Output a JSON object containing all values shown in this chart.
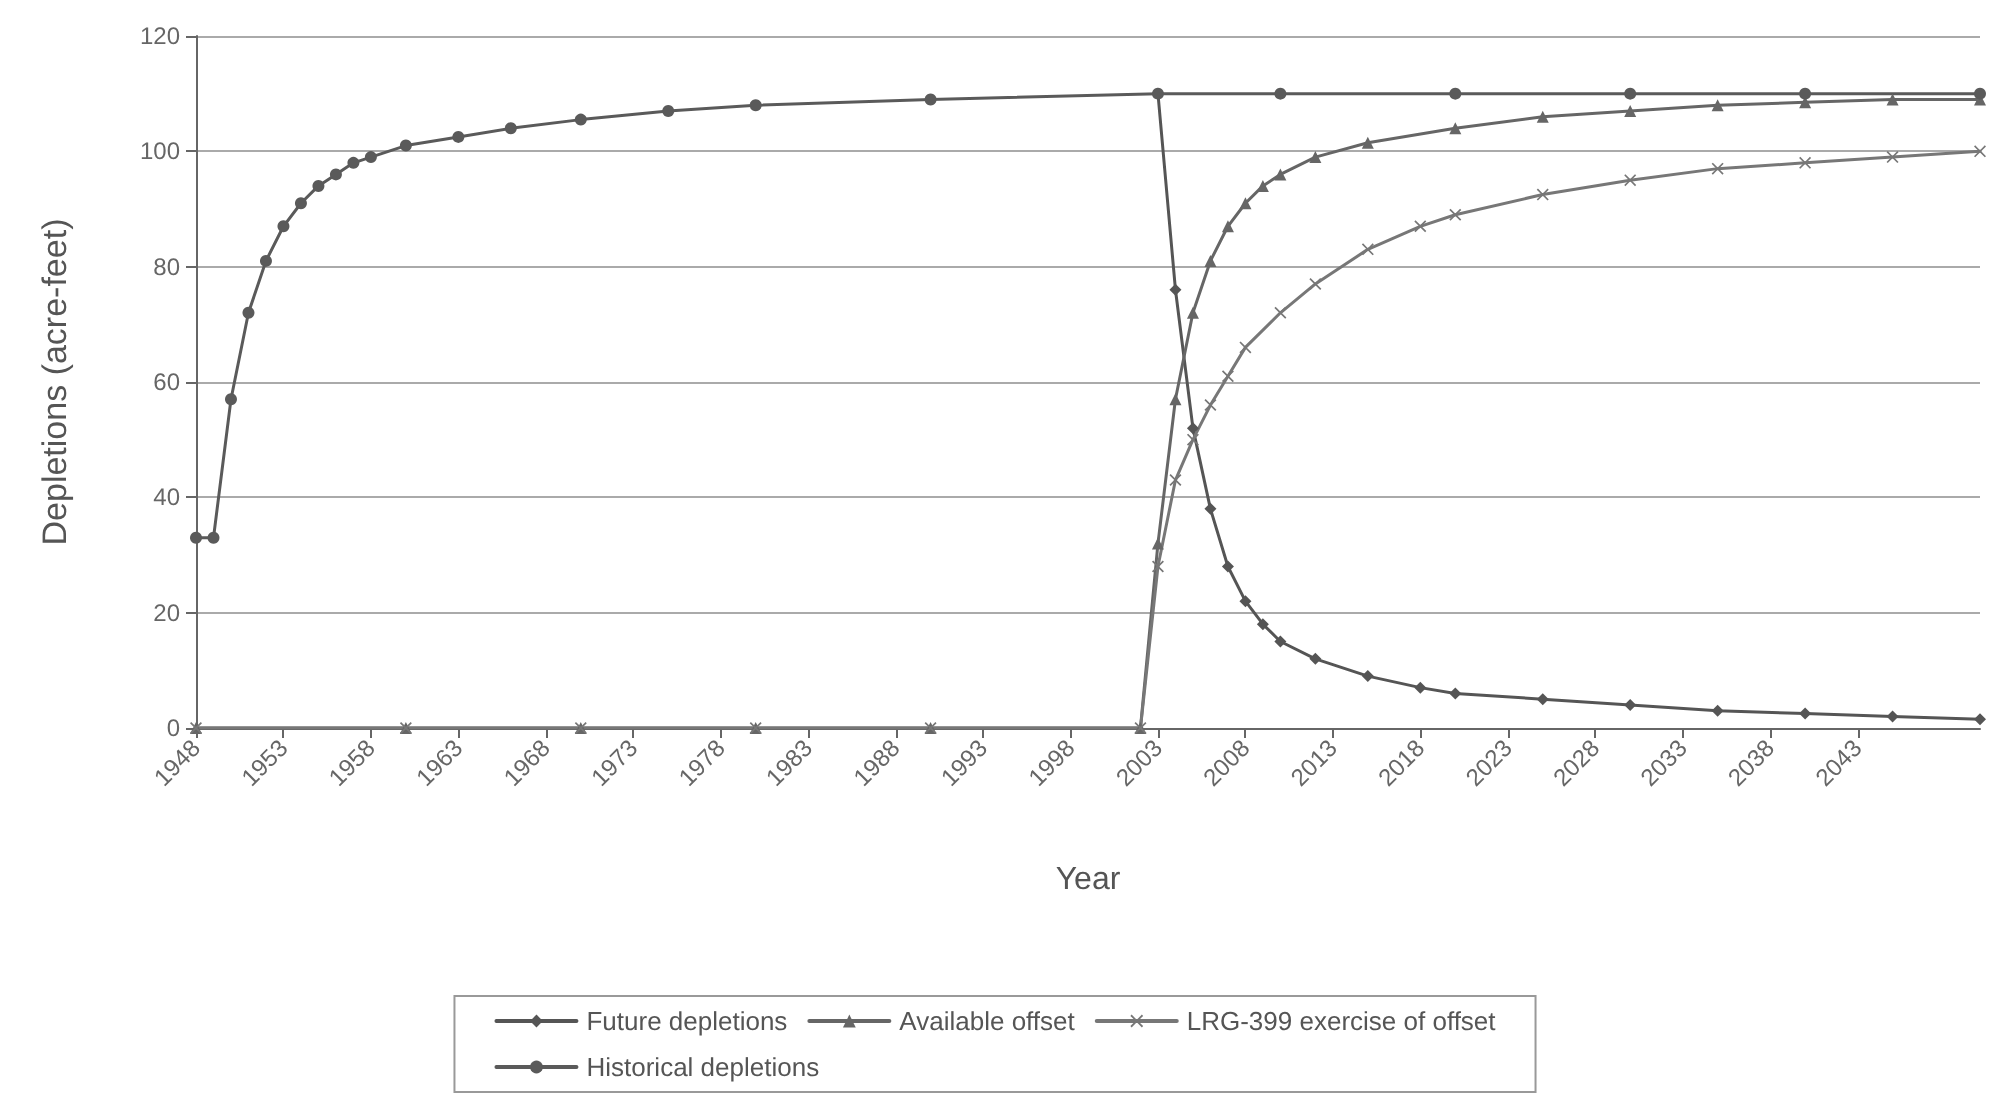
{
  "chart_data": {
    "type": "line",
    "xlabel": "Year",
    "ylabel": "Depletions (acre-feet)",
    "xlim": [
      1948,
      2050
    ],
    "xticks": [
      1948,
      1953,
      1958,
      1963,
      1968,
      1973,
      1978,
      1983,
      1988,
      1993,
      1998,
      2003,
      2008,
      2013,
      2018,
      2023,
      2028,
      2033,
      2038,
      2043
    ],
    "ylim": [
      0,
      120
    ],
    "yticks": [
      0,
      20,
      40,
      60,
      80,
      100,
      120
    ],
    "grid": "y",
    "legend": "bottom",
    "series": [
      {
        "name": "Future depletions",
        "color": "#555555",
        "marker": "diamond",
        "x": [
          2003,
          2004,
          2005,
          2006,
          2007,
          2008,
          2009,
          2010,
          2012,
          2015,
          2018,
          2020,
          2025,
          2030,
          2035,
          2040,
          2045,
          2050
        ],
        "values": [
          110,
          76,
          52,
          38,
          28,
          22,
          18,
          15,
          12,
          9,
          7,
          6,
          5,
          4,
          3,
          2.5,
          2,
          1.5
        ]
      },
      {
        "name": "Available offset",
        "color": "#666666",
        "marker": "triangle",
        "x": [
          1948,
          1960,
          1970,
          1980,
          1990,
          2002,
          2003,
          2004,
          2005,
          2006,
          2007,
          2008,
          2009,
          2010,
          2012,
          2015,
          2020,
          2025,
          2030,
          2035,
          2040,
          2045,
          2050
        ],
        "values": [
          0,
          0,
          0,
          0,
          0,
          0,
          32,
          57,
          72,
          81,
          87,
          91,
          94,
          96,
          99,
          101.5,
          104,
          106,
          107,
          108,
          108.5,
          109,
          109
        ]
      },
      {
        "name": "LRG-399 exercise of offset",
        "color": "#777777",
        "marker": "cross",
        "x": [
          1948,
          1960,
          1970,
          1980,
          1990,
          2002,
          2003,
          2004,
          2005,
          2006,
          2007,
          2008,
          2010,
          2012,
          2015,
          2018,
          2020,
          2025,
          2030,
          2035,
          2040,
          2045,
          2050
        ],
        "values": [
          0,
          0,
          0,
          0,
          0,
          0,
          28,
          43,
          50,
          56,
          61,
          66,
          72,
          77,
          83,
          87,
          89,
          92.5,
          95,
          97,
          98,
          99,
          100
        ]
      },
      {
        "name": "Historical depletions",
        "color": "#5a5a5a",
        "marker": "circle",
        "x": [
          1948,
          1949,
          1950,
          1951,
          1952,
          1953,
          1954,
          1955,
          1956,
          1957,
          1958,
          1960,
          1963,
          1966,
          1970,
          1975,
          1980,
          1990,
          2003,
          2010,
          2020,
          2030,
          2040,
          2050
        ],
        "values": [
          33,
          33,
          57,
          72,
          81,
          87,
          91,
          94,
          96,
          98,
          99,
          101,
          102.5,
          104,
          105.5,
          107,
          108,
          109,
          110,
          110,
          110,
          110,
          110,
          110
        ]
      }
    ]
  }
}
